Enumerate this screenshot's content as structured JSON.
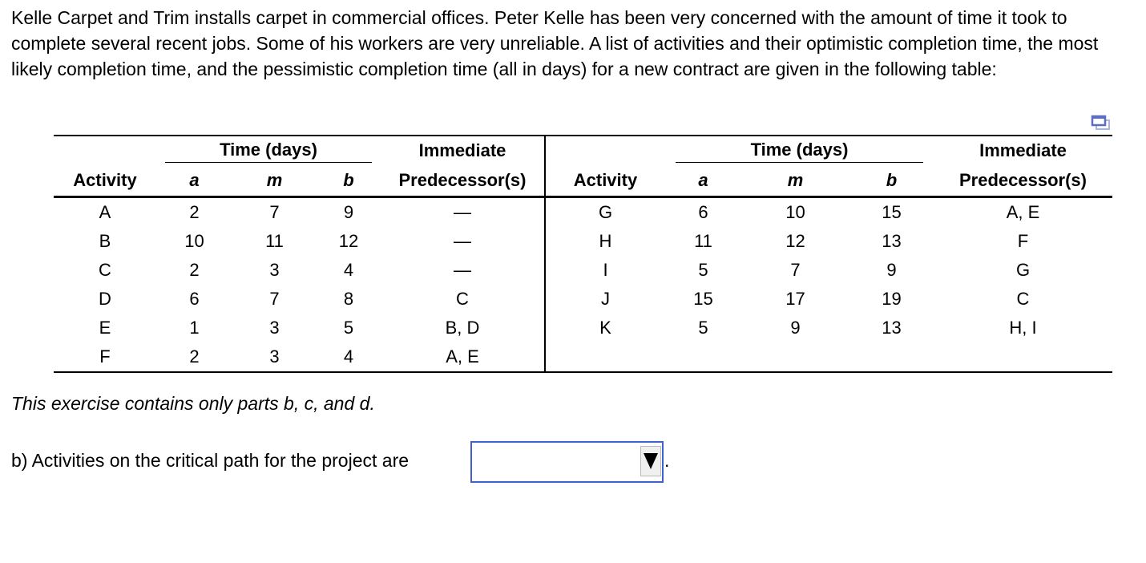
{
  "intro": "Kelle Carpet and Trim installs carpet in commercial offices. Peter Kelle has been very concerned with the amount of time it took to complete several recent jobs. Some of his workers are very unreliable. A list of activities and their optimistic completion time, the most likely completion time, and the pessimistic completion time (all in days) for a new contract are given in the following table:",
  "table": {
    "time_header": "Time (days)",
    "immediate": "Immediate",
    "predecessors": "Predecessor(s)",
    "activity": "Activity",
    "a": "a",
    "m": "m",
    "b": "b",
    "left": [
      [
        "A",
        "2",
        "7",
        "9",
        "—"
      ],
      [
        "B",
        "10",
        "11",
        "12",
        "—"
      ],
      [
        "C",
        "2",
        "3",
        "4",
        "—"
      ],
      [
        "D",
        "6",
        "7",
        "8",
        "C"
      ],
      [
        "E",
        "1",
        "3",
        "5",
        "B, D"
      ],
      [
        "F",
        "2",
        "3",
        "4",
        "A, E"
      ]
    ],
    "right": [
      [
        "G",
        "6",
        "10",
        "15",
        "A, E"
      ],
      [
        "H",
        "11",
        "12",
        "13",
        "F"
      ],
      [
        "I",
        "5",
        "7",
        "9",
        "G"
      ],
      [
        "J",
        "15",
        "17",
        "19",
        "C"
      ],
      [
        "K",
        "5",
        "9",
        "13",
        "H, I"
      ],
      [
        "",
        "",
        "",
        "",
        ""
      ]
    ]
  },
  "note": "This exercise contains only parts b, c, and d.",
  "question": "b) Activities on the critical path for the project are",
  "answer_value": "",
  "period": ".",
  "colors": {
    "select_border": "#3d63c8",
    "copy_icon": "#5a6fc0"
  }
}
